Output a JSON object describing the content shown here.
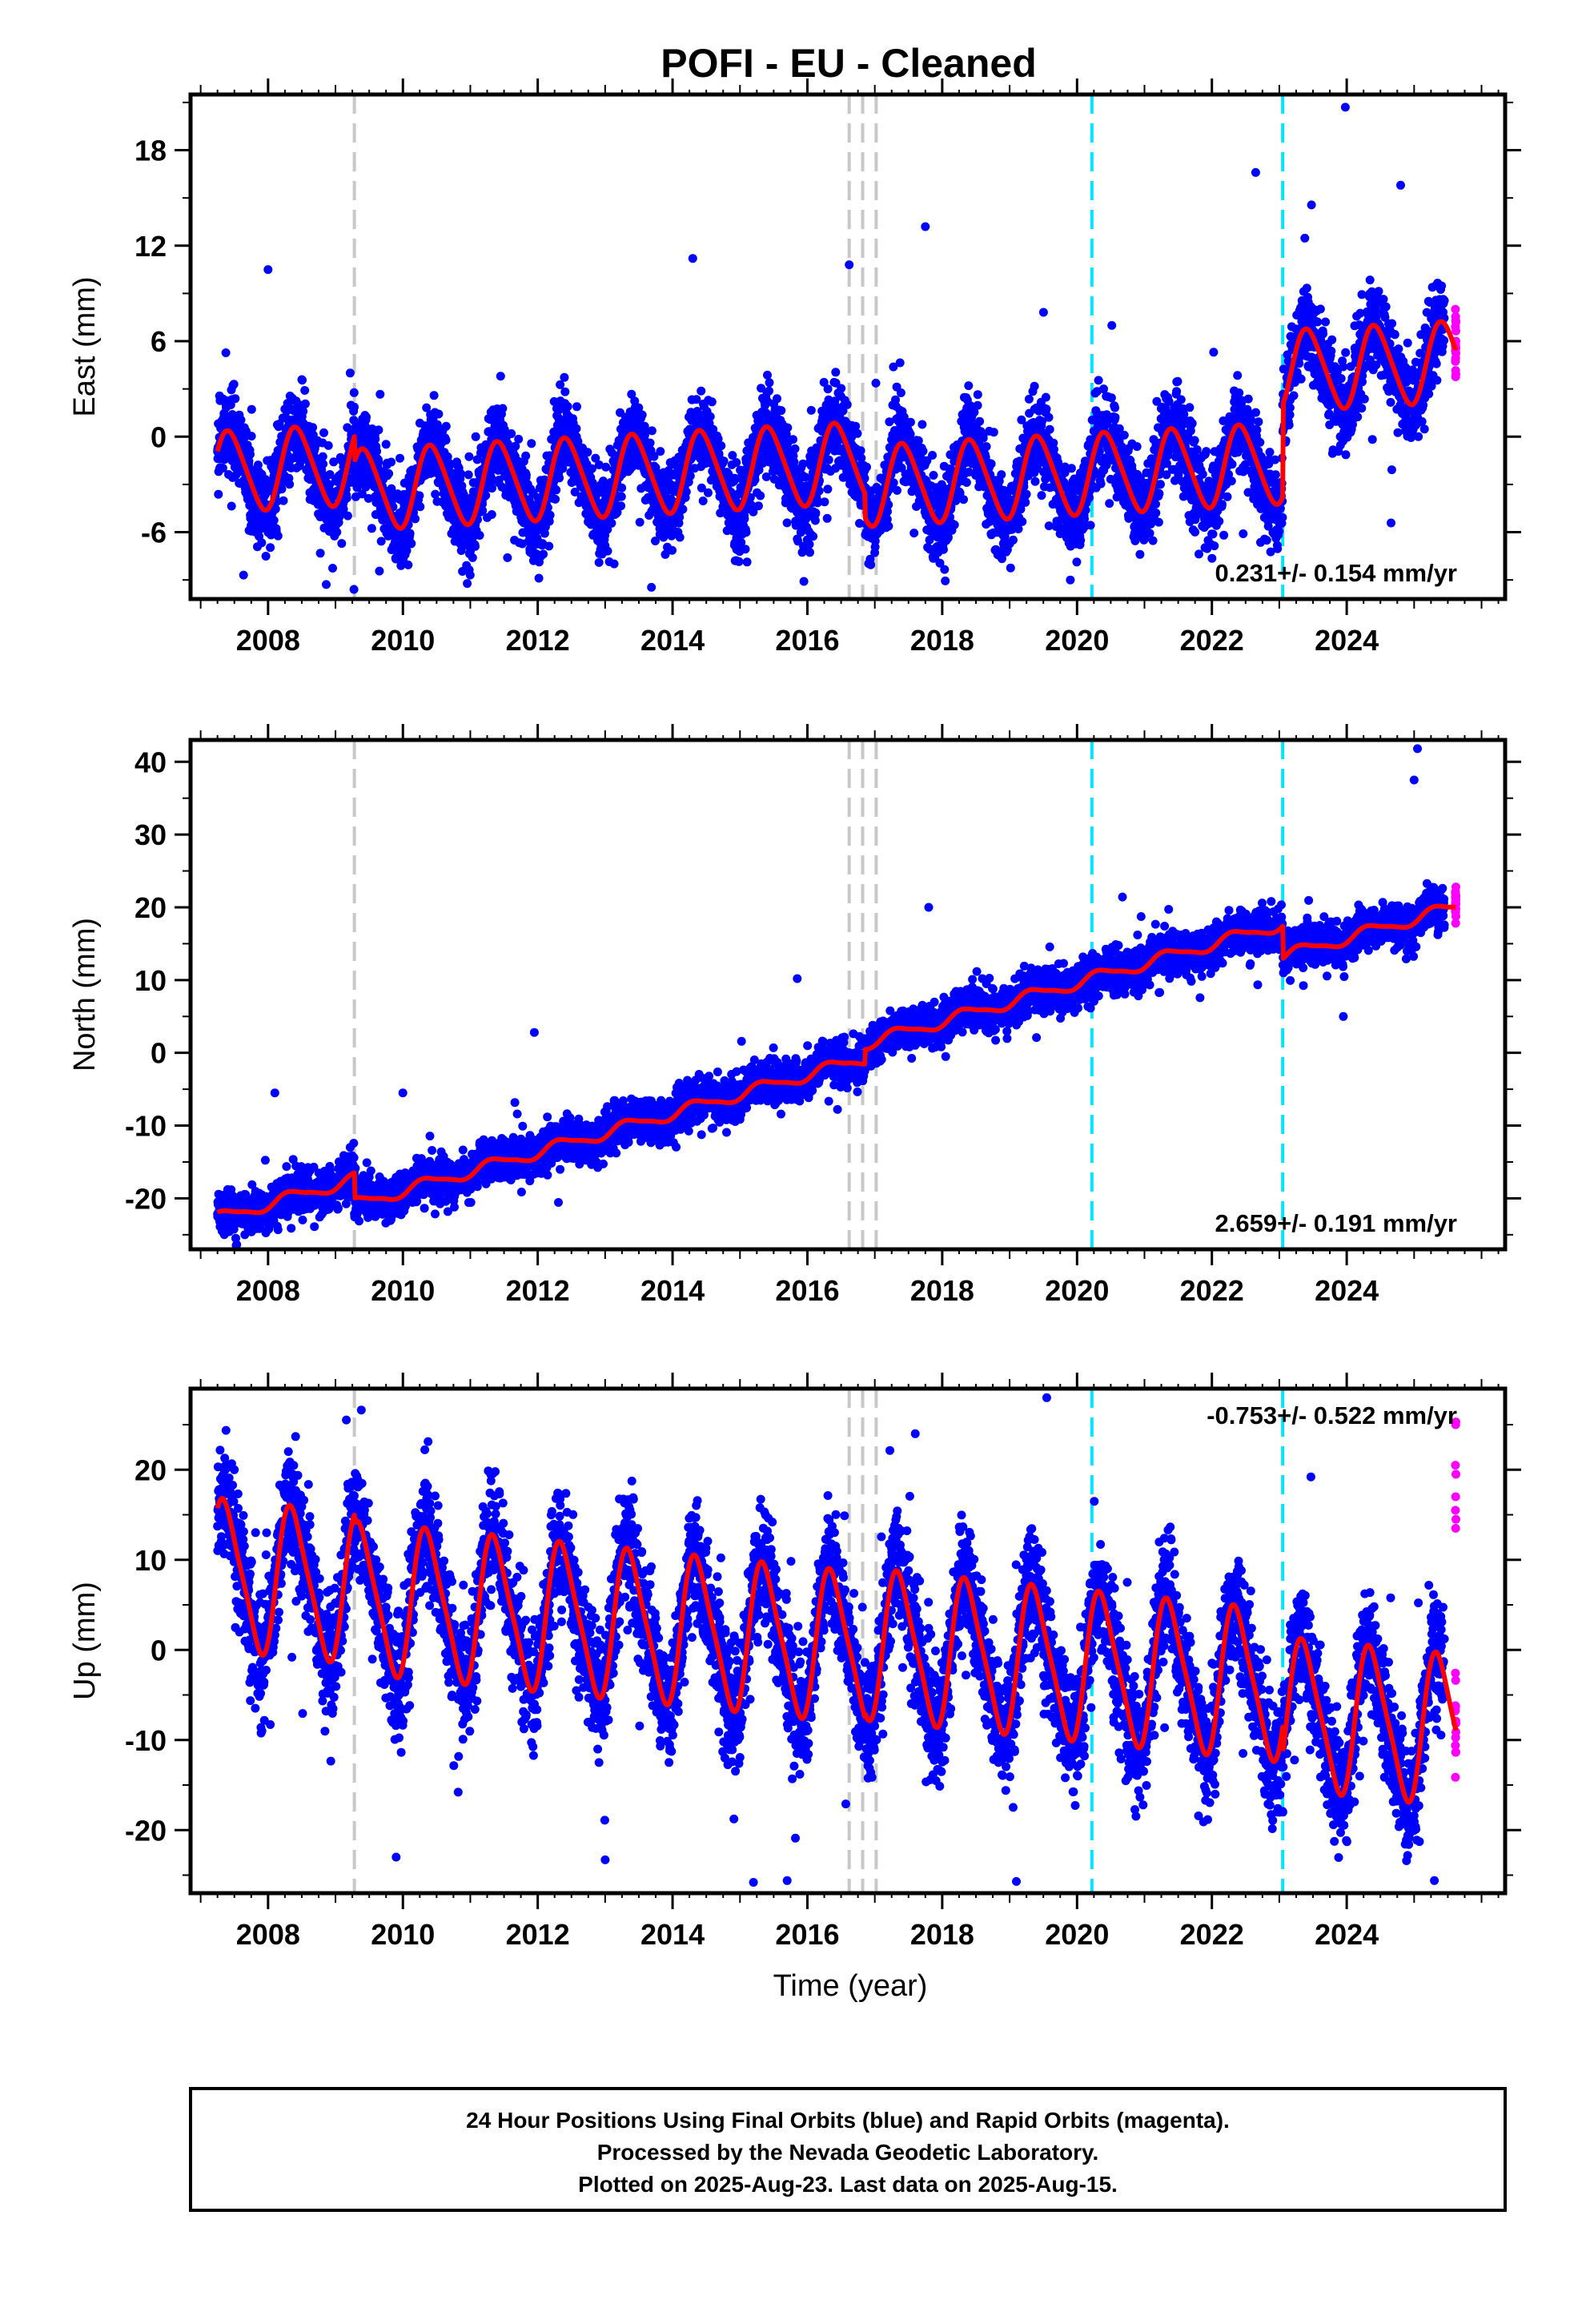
{
  "figure": {
    "title": "POFI  - EU - Cleaned",
    "xlabel": "Time (year)",
    "footer": [
      "24 Hour Positions Using Final Orbits (blue) and Rapid Orbits (magenta).",
      "Processed by the Nevada Geodetic Laboratory.",
      "Plotted on 2025-Aug-23. Last data on 2025-Aug-15."
    ],
    "colors": {
      "final": "#0000ff",
      "rapid": "#ff00ff",
      "model": "#ff0000",
      "equipment_change": "#c8c8c8",
      "earthquake": "#00e5ff"
    }
  },
  "chart_data": [
    {
      "type": "scatter",
      "name": "east",
      "ylabel": "East (mm)",
      "xlim": [
        2006.85,
        2026.35
      ],
      "ylim": [
        -10.2,
        21.5
      ],
      "xticks": [
        "2008",
        "2010",
        "2012",
        "2014",
        "2016",
        "2018",
        "2020",
        "2022",
        "2024"
      ],
      "yticks": [
        "-6",
        "0",
        "6",
        "12",
        "18"
      ],
      "rate_label": "0.231+/- 0.154 mm/yr",
      "rate_position": "bottom-right",
      "data_start": 2007.25,
      "data_end": 2025.62,
      "rapid_start": 2025.45,
      "model": {
        "trend": 0.231,
        "offset": -0.2,
        "annual_amp": 2.5,
        "annual_phase": 0.18,
        "semiannual_amp": 0.3,
        "noise_sd": 1.3
      },
      "steps": [
        {
          "year": 2009.28,
          "size": -1.6
        },
        {
          "year": 2016.85,
          "size": -1.5
        },
        {
          "year": 2023.05,
          "size": 5.8
        }
      ],
      "outliers": [
        [
          2023.98,
          20.7
        ],
        [
          2022.65,
          16.6
        ],
        [
          2017.75,
          13.2
        ],
        [
          2024.8,
          15.8
        ],
        [
          2016.62,
          10.8
        ],
        [
          2014.3,
          11.2
        ],
        [
          2008.0,
          10.5
        ],
        [
          2019.9,
          -9.0
        ],
        [
          2012.05,
          -7.5
        ]
      ],
      "equipment_changes": [
        2009.28,
        2016.62,
        2016.82,
        2017.02
      ],
      "earthquakes": [
        2020.22,
        2023.05
      ]
    },
    {
      "type": "scatter",
      "name": "north",
      "ylabel": "North (mm)",
      "xlim": [
        2006.85,
        2026.35
      ],
      "ylim": [
        -27,
        43
      ],
      "xticks": [
        "2008",
        "2010",
        "2012",
        "2014",
        "2016",
        "2018",
        "2020",
        "2022",
        "2024"
      ],
      "yticks": [
        "-20",
        "-10",
        "0",
        "10",
        "20",
        "30",
        "40"
      ],
      "rate_label": "2.659+/- 0.191 mm/yr",
      "rate_position": "bottom-right",
      "data_start": 2007.25,
      "data_end": 2025.62,
      "rapid_start": 2025.45,
      "model": {
        "trend": 2.659,
        "offset": 0.5,
        "annual_amp": 0.8,
        "annual_phase": 0.1,
        "semiannual_amp": 0.2,
        "noise_sd": 1.4
      },
      "steps": [
        {
          "year": 2009.28,
          "size": -3.5
        },
        {
          "year": 2016.85,
          "size": 2.0
        },
        {
          "year": 2023.05,
          "size": -4.5
        }
      ],
      "outliers": [
        [
          2025.05,
          41.8
        ],
        [
          2025.0,
          37.5
        ],
        [
          2015.85,
          10.2
        ],
        [
          2008.1,
          -5.5
        ],
        [
          2010.0,
          -5.5
        ],
        [
          2011.95,
          2.8
        ],
        [
          2023.95,
          5.0
        ],
        [
          2017.8,
          20.0
        ]
      ],
      "equipment_changes": [
        2009.28,
        2016.62,
        2016.82,
        2017.02
      ],
      "earthquakes": [
        2020.22,
        2023.05
      ]
    },
    {
      "type": "scatter",
      "name": "up",
      "ylabel": "Up (mm)",
      "xlim": [
        2006.85,
        2026.35
      ],
      "ylim": [
        -27,
        29
      ],
      "xticks": [
        "2008",
        "2010",
        "2012",
        "2014",
        "2016",
        "2018",
        "2020",
        "2022",
        "2024"
      ],
      "yticks": [
        "-20",
        "-10",
        "0",
        "10",
        "20"
      ],
      "rate_label": "-0.753+/- 0.522 mm/yr",
      "rate_position": "top-right",
      "data_start": 2007.25,
      "data_end": 2025.62,
      "rapid_start": 2025.45,
      "model": {
        "trend": -0.753,
        "offset": 1.8,
        "annual_amp": 8.0,
        "annual_phase": 0.12,
        "semiannual_amp": 1.5,
        "noise_sd": 3.2
      },
      "steps": [
        {
          "year": 2009.28,
          "size": -1.0
        },
        {
          "year": 2016.85,
          "size": 0.5
        },
        {
          "year": 2023.05,
          "size": -3.0
        }
      ],
      "outliers": [
        [
          2019.55,
          28.0
        ],
        [
          2017.6,
          24.0
        ],
        [
          2015.2,
          -25.8
        ],
        [
          2019.1,
          -25.7
        ],
        [
          2025.3,
          -25.6
        ],
        [
          2009.9,
          -23.0
        ],
        [
          2013.0,
          -23.3
        ],
        [
          2015.7,
          -25.6
        ],
        [
          2007.5,
          20.0
        ]
      ],
      "rapid_values": [
        25.3,
        25.0,
        20.5,
        19.5,
        17.0,
        15.5,
        14.5,
        13.5
      ],
      "equipment_changes": [
        2009.28,
        2016.62,
        2016.82,
        2017.02
      ],
      "earthquakes": [
        2020.22,
        2023.05
      ]
    }
  ]
}
